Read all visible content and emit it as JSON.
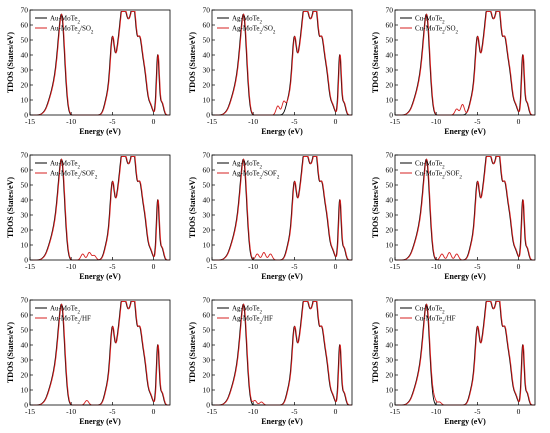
{
  "figure": {
    "common": {
      "type": "line",
      "xlabel": "Energy (eV)",
      "ylabel": "TDOS (States/eV)",
      "xlim": [
        -15,
        2
      ],
      "ylim": [
        0,
        70
      ],
      "xticks": [
        -15,
        -10,
        -5,
        0
      ],
      "yticks": [
        0,
        10,
        20,
        30,
        40,
        50,
        60,
        70
      ],
      "grid": false,
      "legend_placement": "top-left",
      "series_colors": [
        "#000000",
        "#d62020"
      ]
    }
  },
  "chart_data": [
    {
      "type": "line",
      "row": 0,
      "col": 0,
      "metal": "Au",
      "gas": "SO2",
      "series": [
        {
          "name": "Au-MoTe2"
        },
        {
          "name": "Au-MoTe2/SO2"
        }
      ],
      "peaks": {
        "red_extra": [],
        "pristine_shift": 0
      }
    },
    {
      "type": "line",
      "row": 0,
      "col": 1,
      "metal": "Ag",
      "gas": "SO2",
      "series": [
        {
          "name": "Ag-MoTe2"
        },
        {
          "name": "Ag-MoTe2/SO2"
        }
      ],
      "peaks": {
        "red_extra": [
          [
            -7,
            6
          ],
          [
            -6.3,
            8
          ]
        ],
        "pristine_shift": 0
      }
    },
    {
      "type": "line",
      "row": 0,
      "col": 2,
      "metal": "Cu",
      "gas": "SO2",
      "series": [
        {
          "name": "Cu-MoTe2"
        },
        {
          "name": "Cu-MoTe2/SO2"
        }
      ],
      "peaks": {
        "red_extra": [
          [
            -7.5,
            4
          ],
          [
            -6.8,
            7
          ]
        ],
        "pristine_shift": 0
      }
    },
    {
      "type": "line",
      "row": 1,
      "col": 0,
      "metal": "Au",
      "gas": "SOF2",
      "series": [
        {
          "name": "Au-MoTe2"
        },
        {
          "name": "Au-MoTe2/SOF2"
        }
      ],
      "peaks": {
        "red_extra": [
          [
            -8.6,
            4
          ],
          [
            -7.8,
            5
          ],
          [
            -7.2,
            3
          ]
        ],
        "pristine_shift": 0
      }
    },
    {
      "type": "line",
      "row": 1,
      "col": 1,
      "metal": "Ag",
      "gas": "SOF2",
      "series": [
        {
          "name": "Ag-MoTe2"
        },
        {
          "name": "Ag-MoTe2/SOF2"
        }
      ],
      "peaks": {
        "red_extra": [
          [
            -9.5,
            4
          ],
          [
            -8.7,
            5
          ],
          [
            -7.9,
            4
          ]
        ],
        "pristine_shift": 0
      }
    },
    {
      "type": "line",
      "row": 1,
      "col": 2,
      "metal": "Cu",
      "gas": "SOF2",
      "series": [
        {
          "name": "Cu-MoTe2"
        },
        {
          "name": "Cu-MoTe2/SOF2"
        }
      ],
      "peaks": {
        "red_extra": [
          [
            -9.3,
            4
          ],
          [
            -8.4,
            5
          ],
          [
            -7.5,
            4
          ]
        ],
        "pristine_shift": 0
      }
    },
    {
      "type": "line",
      "row": 2,
      "col": 0,
      "metal": "Au",
      "gas": "HF",
      "series": [
        {
          "name": "Au-MoTe2"
        },
        {
          "name": "Au-MoTe2/HF"
        }
      ],
      "peaks": {
        "red_extra": [
          [
            -8.1,
            3
          ]
        ],
        "pristine_shift": 0
      }
    },
    {
      "type": "line",
      "row": 2,
      "col": 1,
      "metal": "Ag",
      "gas": "HF",
      "series": [
        {
          "name": "Ag-MoTe2"
        },
        {
          "name": "Ag-MoTe2/HF"
        }
      ],
      "peaks": {
        "red_extra": [
          [
            -9.8,
            3
          ],
          [
            -9.0,
            2
          ]
        ],
        "pristine_shift": 0
      }
    },
    {
      "type": "line",
      "row": 2,
      "col": 2,
      "metal": "Cu",
      "gas": "HF",
      "series": [
        {
          "name": "Cu-MoTe2"
        },
        {
          "name": "Cu-MoTe2/HF"
        }
      ],
      "peaks": {
        "red_extra": [
          [
            -10.2,
            3
          ],
          [
            -9.6,
            2
          ]
        ],
        "pristine_shift": 0
      }
    }
  ]
}
